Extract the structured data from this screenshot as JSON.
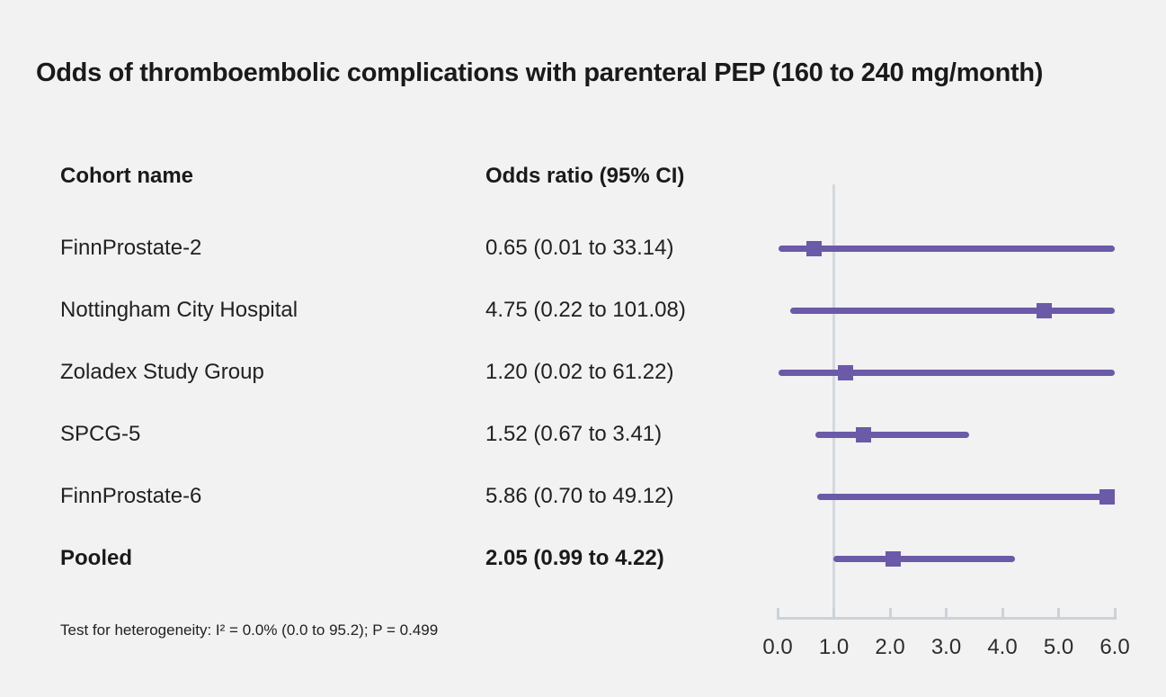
{
  "title": "Odds of thromboembolic complications with parenteral PEP (160 to 240 mg/month)",
  "table": {
    "cohort_header": "Cohort name",
    "or_header": "Odds ratio (95% CI)",
    "rows": [
      {
        "name": "FinnProstate-2",
        "or_text": "0.65 (0.01 to 33.14)"
      },
      {
        "name": "Nottingham City Hospital",
        "or_text": "4.75 (0.22 to 101.08)"
      },
      {
        "name": "Zoladex Study Group",
        "or_text": "1.20 (0.02 to 61.22)"
      },
      {
        "name": "SPCG-5",
        "or_text": "1.52 (0.67 to 3.41)"
      },
      {
        "name": "FinnProstate-6",
        "or_text": "5.86 (0.70 to 49.12)"
      },
      {
        "name": "Pooled",
        "or_text": "2.05 (0.99 to 4.22)"
      }
    ]
  },
  "footnote": "Test for heterogeneity: I² = 0.0% (0.0 to 95.2); P = 0.499",
  "colors": {
    "marker_purple": "#6a5aa8",
    "ref_line": "#d4d8df",
    "axis_line": "#ccd2da",
    "background": "#f2f2f2",
    "text": "#1a1a1a"
  },
  "chart_data": {
    "type": "scatter",
    "subtype": "forest-plot",
    "title": "Odds of thromboembolic complications with parenteral PEP (160 to 240 mg/month)",
    "xlabel": "Odds ratio (95% CI)",
    "xlim": [
      0.0,
      6.0
    ],
    "x_tick_values": [
      0,
      1,
      2,
      3,
      4,
      5,
      6
    ],
    "x_tick_labels": [
      "0.0",
      "1.0",
      "2.0",
      "3.0",
      "4.0",
      "5.0",
      "6.0"
    ],
    "reference_line_x": 1.0,
    "grid": false,
    "legend": "none",
    "points": [
      {
        "label": "FinnProstate-2",
        "or": 0.65,
        "ci_low": 0.01,
        "ci_high": 33.14,
        "pooled": false
      },
      {
        "label": "Nottingham City Hospital",
        "or": 4.75,
        "ci_low": 0.22,
        "ci_high": 101.08,
        "pooled": false
      },
      {
        "label": "Zoladex Study Group",
        "or": 1.2,
        "ci_low": 0.02,
        "ci_high": 61.22,
        "pooled": false
      },
      {
        "label": "SPCG-5",
        "or": 1.52,
        "ci_low": 0.67,
        "ci_high": 3.41,
        "pooled": false
      },
      {
        "label": "FinnProstate-6",
        "or": 5.86,
        "ci_low": 0.7,
        "ci_high": 49.12,
        "pooled": false
      },
      {
        "label": "Pooled",
        "or": 2.05,
        "ci_low": 0.99,
        "ci_high": 4.22,
        "pooled": true
      }
    ],
    "heterogeneity_note": "Test for heterogeneity: I² = 0.0% (0.0 to 95.2); P = 0.499"
  }
}
